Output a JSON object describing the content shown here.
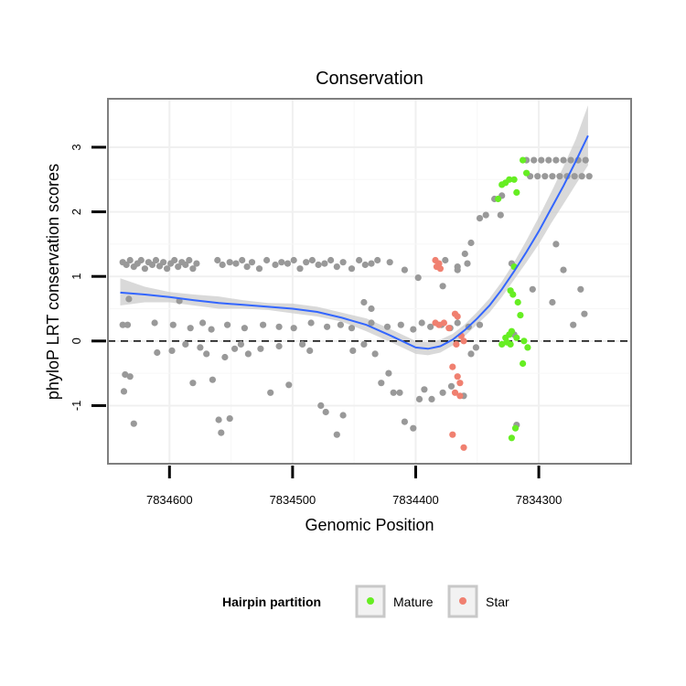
{
  "chart_data": {
    "type": "scatter",
    "title": "Conservation",
    "xlabel": "Genomic Position",
    "ylabel": "phyloP LRT conservation scores",
    "x_reversed": true,
    "xlim": [
      7834650,
      7834225
    ],
    "ylim": [
      -1.9,
      3.75
    ],
    "x_ticks": [
      7834600,
      7834500,
      7834400,
      7834300
    ],
    "x_tick_labels": [
      "7834600",
      "7834500",
      "7834400",
      "7834300"
    ],
    "y_ticks": [
      -1,
      0,
      1,
      2,
      3
    ],
    "y_tick_labels": [
      "-1",
      "0",
      "1",
      "2",
      "3"
    ],
    "grid": true,
    "reference_line": {
      "y": 0,
      "style": "dashed"
    },
    "colors": {
      "other": "#999999",
      "mature": "#66ee22",
      "star": "#f08070",
      "smooth": "#3366ff",
      "band": "#cccccc"
    },
    "legend": {
      "title": "Hairpin partition",
      "placement": "bottom",
      "entries": [
        {
          "label": "Mature",
          "color": "#66ee22"
        },
        {
          "label": "Star",
          "color": "#f08070"
        }
      ]
    },
    "series": [
      {
        "name": "Other",
        "points": [
          [
            7834638,
            1.22
          ],
          [
            7834635,
            1.18
          ],
          [
            7834632,
            1.25
          ],
          [
            7834629,
            1.15
          ],
          [
            7834626,
            1.2
          ],
          [
            7834623,
            1.25
          ],
          [
            7834620,
            1.12
          ],
          [
            7834617,
            1.22
          ],
          [
            7834614,
            1.18
          ],
          [
            7834611,
            1.25
          ],
          [
            7834608,
            1.16
          ],
          [
            7834605,
            1.22
          ],
          [
            7834602,
            1.12
          ],
          [
            7834599,
            1.2
          ],
          [
            7834596,
            1.25
          ],
          [
            7834593,
            1.15
          ],
          [
            7834590,
            1.22
          ],
          [
            7834587,
            1.18
          ],
          [
            7834584,
            1.25
          ],
          [
            7834581,
            1.12
          ],
          [
            7834578,
            1.2
          ],
          [
            7834561,
            1.25
          ],
          [
            7834557,
            1.18
          ],
          [
            7834551,
            1.22
          ],
          [
            7834546,
            1.2
          ],
          [
            7834541,
            1.25
          ],
          [
            7834537,
            1.15
          ],
          [
            7834533,
            1.22
          ],
          [
            7834527,
            1.12
          ],
          [
            7834521,
            1.25
          ],
          [
            7834514,
            1.18
          ],
          [
            7834509,
            1.22
          ],
          [
            7834504,
            1.2
          ],
          [
            7834499,
            1.25
          ],
          [
            7834494,
            1.12
          ],
          [
            7834489,
            1.22
          ],
          [
            7834484,
            1.25
          ],
          [
            7834479,
            1.18
          ],
          [
            7834474,
            1.2
          ],
          [
            7834469,
            1.25
          ],
          [
            7834464,
            1.15
          ],
          [
            7834459,
            1.22
          ],
          [
            7834452,
            1.12
          ],
          [
            7834446,
            1.25
          ],
          [
            7834441,
            1.18
          ],
          [
            7834436,
            1.2
          ],
          [
            7834431,
            1.25
          ],
          [
            7834421,
            1.22
          ],
          [
            7834409,
            1.1
          ],
          [
            7834398,
            0.98
          ],
          [
            7834376,
            1.25
          ],
          [
            7834366,
            1.15
          ],
          [
            7834358,
            1.2
          ],
          [
            7834638,
            0.25
          ],
          [
            7834634,
            0.25
          ],
          [
            7834612,
            0.28
          ],
          [
            7834597,
            0.25
          ],
          [
            7834583,
            0.2
          ],
          [
            7834573,
            0.28
          ],
          [
            7834566,
            0.18
          ],
          [
            7834553,
            0.25
          ],
          [
            7834539,
            0.2
          ],
          [
            7834524,
            0.25
          ],
          [
            7834511,
            0.22
          ],
          [
            7834499,
            0.2
          ],
          [
            7834485,
            0.28
          ],
          [
            7834472,
            0.22
          ],
          [
            7834461,
            0.25
          ],
          [
            7834452,
            0.2
          ],
          [
            7834436,
            0.28
          ],
          [
            7834423,
            0.22
          ],
          [
            7834412,
            0.25
          ],
          [
            7834402,
            0.18
          ],
          [
            7834395,
            0.28
          ],
          [
            7834388,
            0.22
          ],
          [
            7834379,
            0.25
          ],
          [
            7834372,
            0.2
          ],
          [
            7834366,
            0.28
          ],
          [
            7834357,
            0.22
          ],
          [
            7834348,
            0.25
          ],
          [
            7834637,
            -0.78
          ],
          [
            7834636,
            -0.52
          ],
          [
            7834632,
            -0.55
          ],
          [
            7834629,
            -1.28
          ],
          [
            7834610,
            -0.18
          ],
          [
            7834598,
            -0.15
          ],
          [
            7834587,
            -0.05
          ],
          [
            7834581,
            -0.65
          ],
          [
            7834575,
            -0.1
          ],
          [
            7834570,
            -0.2
          ],
          [
            7834565,
            -0.6
          ],
          [
            7834560,
            -1.22
          ],
          [
            7834558,
            -1.42
          ],
          [
            7834555,
            -0.25
          ],
          [
            7834551,
            -1.2
          ],
          [
            7834547,
            -0.12
          ],
          [
            7834542,
            -0.05
          ],
          [
            7834536,
            -0.2
          ],
          [
            7834526,
            -0.12
          ],
          [
            7834518,
            -0.8
          ],
          [
            7834511,
            -0.08
          ],
          [
            7834503,
            -0.68
          ],
          [
            7834492,
            -0.05
          ],
          [
            7834486,
            -0.15
          ],
          [
            7834477,
            -1.0
          ],
          [
            7834473,
            -1.1
          ],
          [
            7834464,
            -1.45
          ],
          [
            7834459,
            -1.15
          ],
          [
            7834451,
            -0.15
          ],
          [
            7834442,
            -0.05
          ],
          [
            7834433,
            -0.2
          ],
          [
            7834428,
            -0.65
          ],
          [
            7834422,
            -0.5
          ],
          [
            7834418,
            -0.8
          ],
          [
            7834413,
            -0.8
          ],
          [
            7834409,
            -1.25
          ],
          [
            7834402,
            -1.35
          ],
          [
            7834397,
            -0.9
          ],
          [
            7834393,
            -0.75
          ],
          [
            7834387,
            -0.9
          ],
          [
            7834378,
            -0.8
          ],
          [
            7834371,
            -0.7
          ],
          [
            7834361,
            -0.85
          ],
          [
            7834355,
            -0.2
          ],
          [
            7834351,
            -0.1
          ],
          [
            7834633,
            0.65
          ],
          [
            7834592,
            0.62
          ],
          [
            7834442,
            0.6
          ],
          [
            7834436,
            0.5
          ],
          [
            7834378,
            0.85
          ],
          [
            7834366,
            1.1
          ],
          [
            7834360,
            1.35
          ],
          [
            7834355,
            1.52
          ],
          [
            7834348,
            1.9
          ],
          [
            7834343,
            1.95
          ],
          [
            7834336,
            2.2
          ],
          [
            7834330,
            2.25
          ],
          [
            7834331,
            1.95
          ],
          [
            7834322,
            1.2
          ],
          [
            7834320,
            0.1
          ],
          [
            7834318,
            -1.3
          ],
          [
            7834305,
            0.8
          ],
          [
            7834286,
            1.5
          ],
          [
            7834289,
            0.6
          ],
          [
            7834280,
            1.1
          ],
          [
            7834272,
            0.25
          ],
          [
            7834266,
            0.8
          ],
          [
            7834263,
            0.42
          ],
          [
            7834310,
            2.8
          ],
          [
            7834304,
            2.8
          ],
          [
            7834298,
            2.8
          ],
          [
            7834292,
            2.8
          ],
          [
            7834286,
            2.8
          ],
          [
            7834280,
            2.8
          ],
          [
            7834274,
            2.8
          ],
          [
            7834268,
            2.8
          ],
          [
            7834262,
            2.8
          ],
          [
            7834307,
            2.55
          ],
          [
            7834301,
            2.55
          ],
          [
            7834295,
            2.55
          ],
          [
            7834289,
            2.55
          ],
          [
            7834283,
            2.55
          ],
          [
            7834277,
            2.55
          ],
          [
            7834271,
            2.55
          ],
          [
            7834265,
            2.55
          ],
          [
            7834259,
            2.55
          ]
        ]
      },
      {
        "name": "Mature",
        "points": [
          [
            7834333,
            2.2
          ],
          [
            7834330,
            2.42
          ],
          [
            7834327,
            2.45
          ],
          [
            7834324,
            2.5
          ],
          [
            7834320,
            2.5
          ],
          [
            7834318,
            2.3
          ],
          [
            7834313,
            2.8
          ],
          [
            7834310,
            2.6
          ],
          [
            7834317,
            0.6
          ],
          [
            7834321,
            0.72
          ],
          [
            7834323,
            0.78
          ],
          [
            7834320,
            1.15
          ],
          [
            7834315,
            0.4
          ],
          [
            7834324,
            0.1
          ],
          [
            7834326,
            -0.02
          ],
          [
            7834323,
            -0.05
          ],
          [
            7834330,
            -0.05
          ],
          [
            7834327,
            0.05
          ],
          [
            7834322,
            0.15
          ],
          [
            7834318,
            0.05
          ],
          [
            7834312,
            0.0
          ],
          [
            7834309,
            -0.1
          ],
          [
            7834313,
            -0.35
          ],
          [
            7834319,
            -1.35
          ],
          [
            7834322,
            -1.5
          ]
        ]
      },
      {
        "name": "Star",
        "points": [
          [
            7834384,
            1.25
          ],
          [
            7834381,
            1.2
          ],
          [
            7834380,
            1.12
          ],
          [
            7834383,
            1.15
          ],
          [
            7834384,
            0.28
          ],
          [
            7834381,
            0.25
          ],
          [
            7834377,
            0.28
          ],
          [
            7834373,
            0.2
          ],
          [
            7834368,
            0.42
          ],
          [
            7834366,
            0.38
          ],
          [
            7834363,
            0.08
          ],
          [
            7834367,
            -0.05
          ],
          [
            7834361,
            0.0
          ],
          [
            7834370,
            -0.4
          ],
          [
            7834366,
            -0.55
          ],
          [
            7834364,
            -0.65
          ],
          [
            7834368,
            -0.8
          ],
          [
            7834364,
            -0.85
          ],
          [
            7834370,
            -1.45
          ],
          [
            7834361,
            -1.65
          ]
        ]
      }
    ],
    "smooth": {
      "x": [
        7834640,
        7834620,
        7834600,
        7834580,
        7834560,
        7834540,
        7834520,
        7834500,
        7834480,
        7834460,
        7834440,
        7834420,
        7834400,
        7834390,
        7834380,
        7834370,
        7834360,
        7834350,
        7834340,
        7834330,
        7834320,
        7834310,
        7834300,
        7834290,
        7834280,
        7834270,
        7834260
      ],
      "y": [
        0.75,
        0.72,
        0.68,
        0.63,
        0.59,
        0.56,
        0.53,
        0.5,
        0.45,
        0.36,
        0.25,
        0.08,
        -0.1,
        -0.12,
        -0.08,
        0.02,
        0.17,
        0.35,
        0.55,
        0.8,
        1.08,
        1.38,
        1.7,
        2.05,
        2.4,
        2.78,
        3.18
      ],
      "lower": [
        0.55,
        0.6,
        0.6,
        0.55,
        0.5,
        0.5,
        0.48,
        0.43,
        0.38,
        0.3,
        0.15,
        -0.02,
        -0.2,
        -0.22,
        -0.18,
        -0.07,
        0.08,
        0.26,
        0.44,
        0.68,
        0.95,
        1.22,
        1.5,
        1.82,
        2.12,
        2.42,
        2.72
      ],
      "upper": [
        0.97,
        0.84,
        0.76,
        0.72,
        0.69,
        0.63,
        0.59,
        0.58,
        0.53,
        0.44,
        0.35,
        0.18,
        0.0,
        -0.02,
        0.02,
        0.11,
        0.26,
        0.45,
        0.66,
        0.92,
        1.22,
        1.56,
        1.92,
        2.3,
        2.7,
        3.12,
        3.65
      ]
    }
  }
}
